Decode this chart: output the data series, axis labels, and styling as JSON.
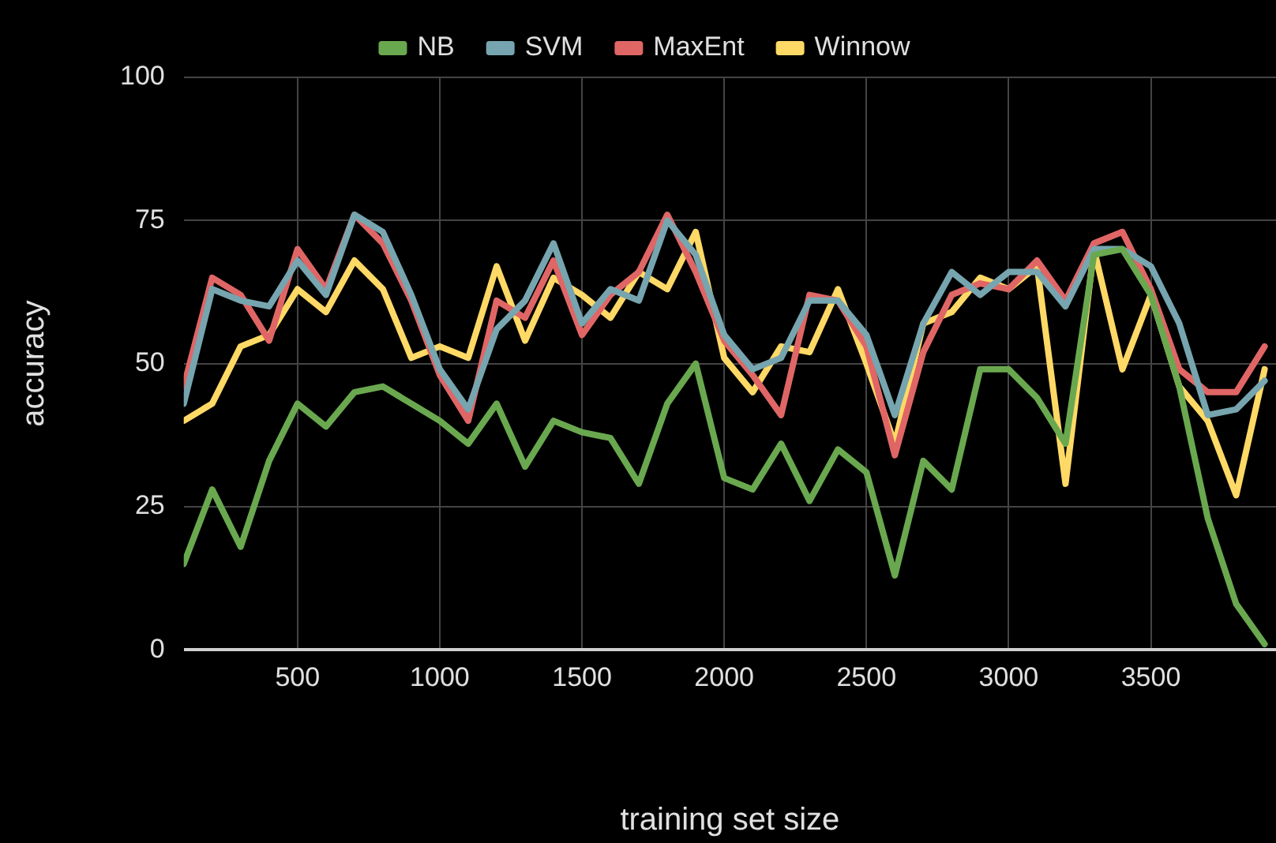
{
  "chart_data": {
    "type": "line",
    "xlabel": "training set size",
    "ylabel": "accuracy",
    "x": [
      100,
      200,
      300,
      400,
      500,
      600,
      700,
      800,
      900,
      1000,
      1100,
      1200,
      1300,
      1400,
      1500,
      1600,
      1700,
      1800,
      1900,
      2000,
      2100,
      2200,
      2300,
      2400,
      2500,
      2600,
      2700,
      2800,
      2900,
      3000,
      3100,
      3200,
      3300,
      3400,
      3500,
      3600,
      3700,
      3800,
      3900
    ],
    "series": [
      {
        "name": "NB",
        "color": "#6aa84f",
        "values": [
          15,
          28,
          18,
          33,
          43,
          39,
          45,
          46,
          43,
          40,
          36,
          43,
          32,
          40,
          38,
          37,
          29,
          43,
          50,
          30,
          28,
          36,
          26,
          35,
          31,
          13,
          33,
          28,
          49,
          49,
          44,
          36,
          69,
          70,
          62,
          46,
          23,
          8,
          1
        ]
      },
      {
        "name": "SVM",
        "color": "#76a5af",
        "values": [
          43,
          63,
          61,
          60,
          68,
          62,
          76,
          73,
          62,
          49,
          42,
          56,
          61,
          71,
          57,
          63,
          61,
          75,
          69,
          55,
          49,
          51,
          61,
          61,
          55,
          41,
          57,
          66,
          62,
          66,
          66,
          60,
          70,
          70,
          67,
          57,
          41,
          42,
          47
        ]
      },
      {
        "name": "MaxEnt",
        "color": "#e06666",
        "values": [
          46,
          65,
          62,
          54,
          70,
          63,
          76,
          71,
          61,
          48,
          40,
          61,
          58,
          68,
          55,
          62,
          66,
          76,
          66,
          54,
          48,
          41,
          62,
          61,
          53,
          34,
          52,
          62,
          64,
          63,
          68,
          61,
          71,
          73,
          63,
          49,
          45,
          45,
          53
        ]
      },
      {
        "name": "Winnow",
        "color": "#ffd966",
        "values": [
          40,
          43,
          53,
          55,
          63,
          59,
          68,
          63,
          51,
          53,
          51,
          67,
          54,
          65,
          62,
          58,
          66,
          63,
          73,
          51,
          45,
          53,
          52,
          63,
          50,
          36,
          57,
          59,
          65,
          63,
          67,
          29,
          70,
          49,
          62,
          46,
          40,
          27,
          49
        ]
      }
    ],
    "xlim": [
      100,
      3940
    ],
    "xticks": [
      500,
      1000,
      1500,
      2000,
      2500,
      3000,
      3500
    ],
    "ylim": [
      0,
      100
    ],
    "yticks": [
      0,
      25,
      50,
      75,
      100
    ],
    "grid": true,
    "legend": "top",
    "marker": "none",
    "line_style": "solid"
  }
}
